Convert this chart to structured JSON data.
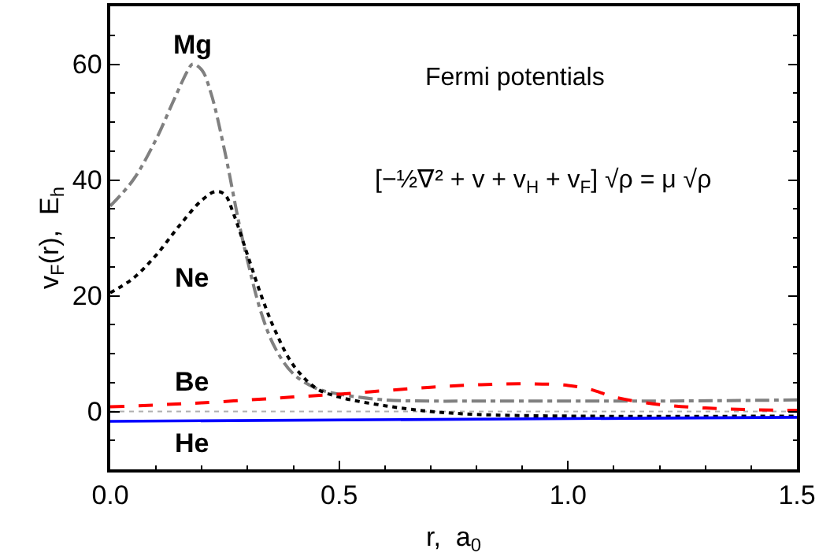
{
  "chart_data": {
    "type": "line",
    "xlabel": "r,  a$_{0}$",
    "ylabel": "v$_{F}$(r),  E$_{h}$",
    "xlim": [
      0,
      1.5
    ],
    "xticks": [
      {
        "value": 0,
        "label": "0.0"
      },
      0.5,
      {
        "value": 1,
        "label": "1.0"
      },
      1.5
    ],
    "ylim": [
      -10,
      70
    ],
    "yticks": [
      0,
      20,
      40,
      60
    ],
    "grid": false,
    "legend": false,
    "marker": "none",
    "series": [
      {
        "name": "Mg",
        "color": "#808080",
        "line_style": "dashdot",
        "x": [
          0,
          0.05,
          0.1,
          0.14,
          0.17,
          0.18,
          0.2,
          0.22,
          0.25,
          0.28,
          0.3,
          0.33,
          0.36,
          0.4,
          0.45,
          0.5,
          0.6,
          0.7,
          0.8,
          1.0,
          1.2,
          1.5
        ],
        "values": [
          35.5,
          40,
          47,
          54,
          59,
          60,
          59,
          55,
          45,
          33,
          26,
          17,
          11,
          6.5,
          4,
          3,
          2,
          1.8,
          1.8,
          1.8,
          1.8,
          2
        ]
      },
      {
        "name": "Ne",
        "color": "#000000",
        "line_style": "dotted",
        "x": [
          0,
          0.05,
          0.1,
          0.15,
          0.2,
          0.23,
          0.25,
          0.27,
          0.3,
          0.33,
          0.36,
          0.4,
          0.45,
          0.5,
          0.6,
          0.7,
          0.8,
          1.0,
          1.5
        ],
        "values": [
          20.5,
          23,
          27,
          32,
          36.5,
          38,
          37.5,
          34,
          27,
          20,
          14,
          8,
          4,
          2.5,
          1,
          0,
          -0.5,
          -0.8,
          -0.8
        ]
      },
      {
        "name": "Be",
        "color": "#ff0000",
        "line_style": "dashed",
        "x": [
          0,
          0.2,
          0.4,
          0.5,
          0.6,
          0.7,
          0.8,
          0.9,
          1.0,
          1.05,
          1.1,
          1.2,
          1.3,
          1.4,
          1.5
        ],
        "values": [
          0.8,
          1.5,
          2.5,
          3,
          3.6,
          4.2,
          4.6,
          4.8,
          4.5,
          3.8,
          2.5,
          1.2,
          0.6,
          0.3,
          0.2
        ]
      },
      {
        "name": "He",
        "color": "#0000ff",
        "line_style": "solid",
        "x": [
          0,
          1.5
        ],
        "values": [
          -1.7,
          -1.0
        ]
      }
    ],
    "ref_lines": [
      {
        "axis": "y",
        "value": 0,
        "color": "#b0b0b0",
        "line_style": "dotted"
      }
    ],
    "annotations": [
      "Fermi potentials",
      "[−½∇² + v + v$_{H}$ + v$_{F}$] √ρ = μ √ρ"
    ]
  }
}
